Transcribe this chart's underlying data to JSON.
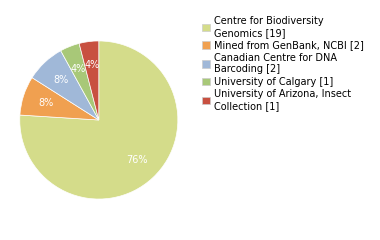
{
  "labels": [
    "Centre for Biodiversity\nGenomics [19]",
    "Mined from GenBank, NCBI [2]",
    "Canadian Centre for DNA\nBarcoding [2]",
    "University of Calgary [1]",
    "University of Arizona, Insect\nCollection [1]"
  ],
  "values": [
    19,
    2,
    2,
    1,
    1
  ],
  "colors": [
    "#d4dc8a",
    "#f0a050",
    "#a0b8d8",
    "#a8c878",
    "#c85040"
  ],
  "startangle": 90,
  "background_color": "#ffffff",
  "text_color": "#ffffff",
  "fontsize": 7,
  "legend_fontsize": 7
}
